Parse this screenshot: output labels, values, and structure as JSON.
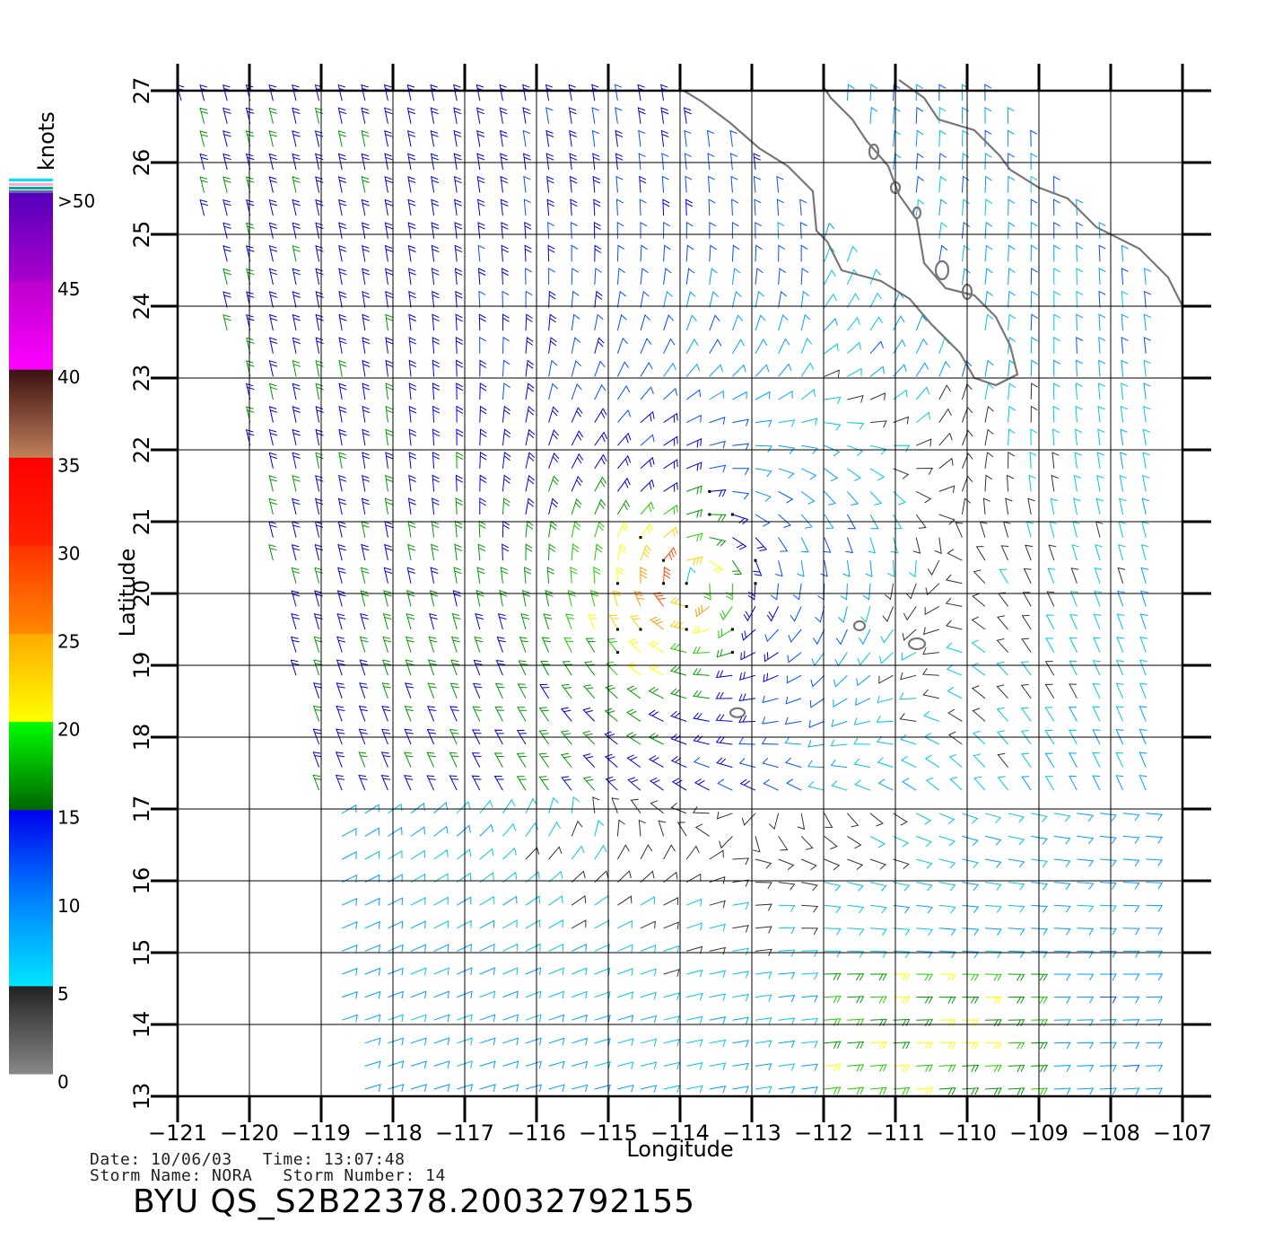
{
  "map": {
    "lon_range": [
      -121,
      -107
    ],
    "lat_range": [
      13,
      27
    ],
    "lon_ticks": [
      -121,
      -120,
      -119,
      -118,
      -117,
      -116,
      -115,
      -114,
      -113,
      -112,
      -111,
      -110,
      -109,
      -108,
      -107
    ],
    "lat_ticks": [
      13,
      14,
      15,
      16,
      17,
      18,
      19,
      20,
      21,
      22,
      23,
      24,
      25,
      26,
      27
    ],
    "xlabel": "Longitude",
    "ylabel": "Latitude",
    "storm_center": {
      "lon": -113.9,
      "lat": 20.1
    },
    "grid": true,
    "field": "wind barbs, colored by speed"
  },
  "colorbar": {
    "unit": "knots",
    "labels": [
      ">50",
      "45",
      "40",
      "35",
      "30",
      "25",
      "20",
      "15",
      "10",
      "5",
      "0"
    ],
    "bands": [
      {
        "from": 0,
        "to": 5,
        "colors": [
          "#888888",
          "#222222"
        ]
      },
      {
        "from": 5,
        "to": 10,
        "colors": [
          "#00e5ff",
          "#0080ff"
        ]
      },
      {
        "from": 10,
        "to": 15,
        "colors": [
          "#0080ff",
          "#0000ee"
        ]
      },
      {
        "from": 15,
        "to": 20,
        "colors": [
          "#006600",
          "#00ff00"
        ]
      },
      {
        "from": 20,
        "to": 25,
        "colors": [
          "#ffff00",
          "#ffaa00"
        ]
      },
      {
        "from": 25,
        "to": 30,
        "colors": [
          "#ff8800",
          "#ff3300"
        ]
      },
      {
        "from": 30,
        "to": 35,
        "colors": [
          "#ff2200",
          "#ff0000"
        ]
      },
      {
        "from": 35,
        "to": 40,
        "colors": [
          "#c0805a",
          "#3a1010"
        ]
      },
      {
        "from": 40,
        "to": 45,
        "colors": [
          "#ff00ff",
          "#bb00cc"
        ]
      },
      {
        "from": 45,
        "to": 50,
        "colors": [
          "#aa00cc",
          "#5500bb"
        ]
      }
    ]
  },
  "info": {
    "line1": "Date: 10/06/03   Time: 13:07:48",
    "line2": "Storm Name: NORA   Storm Number: 14",
    "product_id": "BYU  QS_S2B22378.20032792155"
  },
  "colors": {
    "coast": "#777777",
    "grid": "#000000"
  }
}
